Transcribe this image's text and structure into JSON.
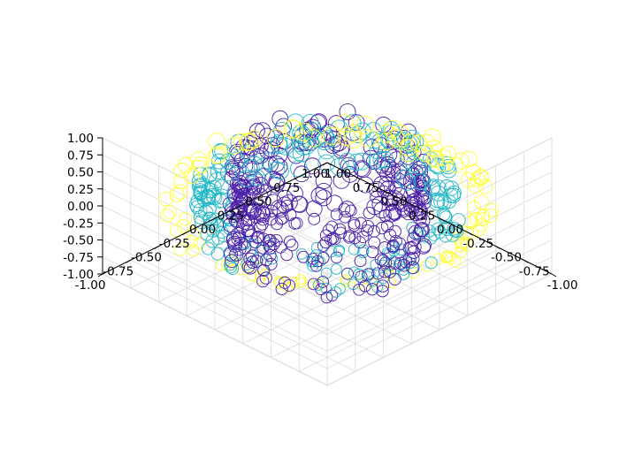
{
  "chart_data": {
    "type": "scatter3d",
    "title": "",
    "xlabel": "",
    "ylabel": "",
    "zlabel": "",
    "xlim": [
      -1,
      1
    ],
    "ylim": [
      -1,
      1
    ],
    "zlim": [
      -1,
      1
    ],
    "grid": true,
    "marker": "hollow-circle",
    "colormap": "viridis-like",
    "x_ticks": [
      "-1.00",
      "-0.75",
      "-0.50",
      "-0.25",
      "0.00",
      "0.25",
      "0.50",
      "0.75",
      "1.00"
    ],
    "y_ticks": [
      "-1.00",
      "-0.75",
      "-0.50",
      "-0.25",
      "0.00",
      "0.25",
      "0.50",
      "0.75",
      "1.00"
    ],
    "z_ticks": [
      "-1.00",
      "-0.75",
      "-0.50",
      "-0.25",
      "0.00",
      "0.25",
      "0.50",
      "0.75",
      "1.00"
    ],
    "series": [
      {
        "radius": 1.0,
        "z_extent": 0.12,
        "count": 120,
        "color": "#ffff33"
      },
      {
        "radius": 0.8,
        "z_extent": 0.35,
        "count": 220,
        "color": "#22b8c6"
      },
      {
        "radius": 0.6,
        "z_extent": 0.7,
        "count": 380,
        "color": "#4b21a8"
      }
    ]
  }
}
